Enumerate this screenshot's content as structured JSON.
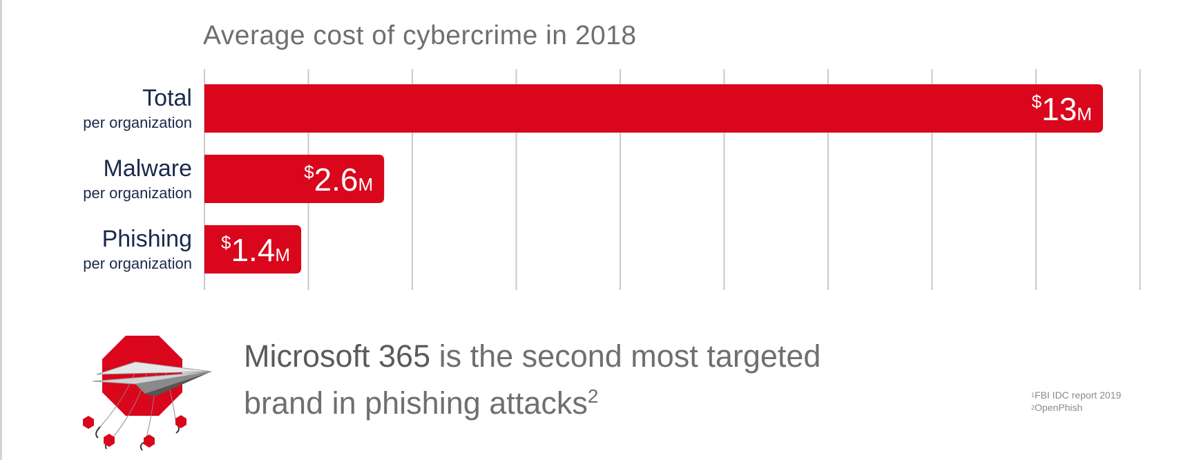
{
  "chart_data": {
    "type": "bar",
    "orientation": "horizontal",
    "title": "Average cost of cybercrime in 2018",
    "categories": [
      {
        "main": "Total",
        "sub": "per organization"
      },
      {
        "main": "Malware",
        "sub": "per organization"
      },
      {
        "main": "Phishing",
        "sub": "per organization"
      }
    ],
    "values": [
      13,
      2.6,
      1.4
    ],
    "value_labels": [
      {
        "prefix": "$",
        "number": "13",
        "suffix": "M"
      },
      {
        "prefix": "$",
        "number": "2.6",
        "suffix": "M"
      },
      {
        "prefix": "$",
        "number": "1.4",
        "suffix": "M"
      }
    ],
    "xlim": [
      0,
      13.5
    ],
    "grid": true,
    "bar_color": "#d9061c",
    "grid_color": "#c9c9c9",
    "label_color": "#1a2a4a"
  },
  "message": {
    "brand": "Microsoft 365",
    "rest_line1": " is the second most targeted",
    "line2": "brand in phishing attacks",
    "sup": "2"
  },
  "footnotes": [
    {
      "sup": "1",
      "text": "FBI IDC report 2019"
    },
    {
      "sup": "2",
      "text": "OpenPhish"
    }
  ],
  "illustration": {
    "icon": "paper-plane-stop-sign-phishing-hooks-icon"
  }
}
